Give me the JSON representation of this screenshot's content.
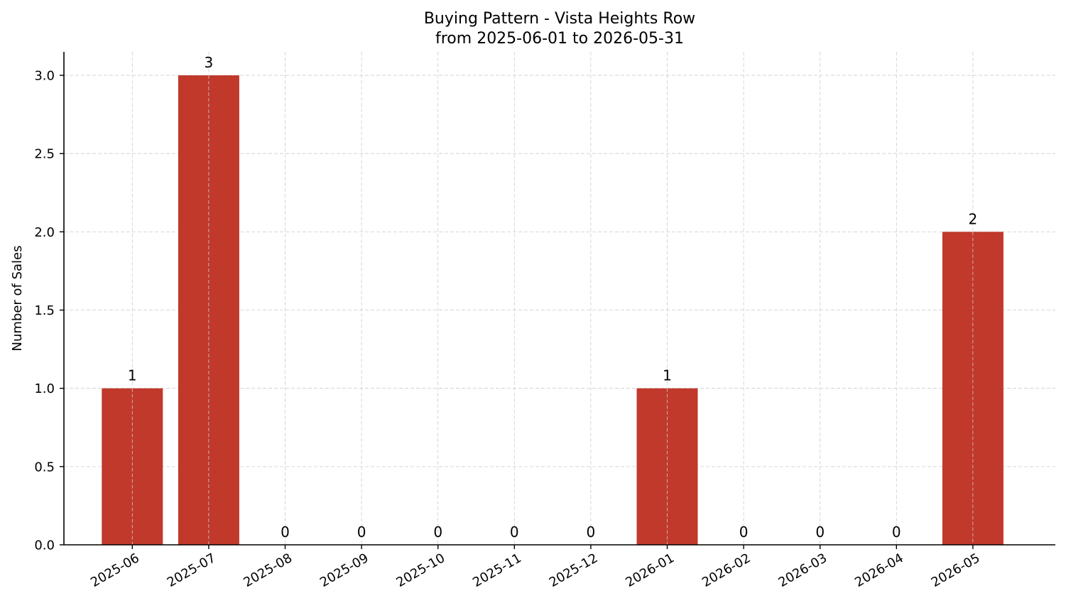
{
  "chart_data": {
    "type": "bar",
    "title_line1": "Buying Pattern - Vista Heights Row",
    "title_line2": "from 2025-06-01 to 2026-05-31",
    "xlabel": "",
    "ylabel": "Number of Sales",
    "categories": [
      "2025-06",
      "2025-07",
      "2025-08",
      "2025-09",
      "2025-10",
      "2025-11",
      "2025-12",
      "2026-01",
      "2026-02",
      "2026-03",
      "2026-04",
      "2026-05"
    ],
    "values": [
      1,
      3,
      0,
      0,
      0,
      0,
      0,
      1,
      0,
      0,
      0,
      2
    ],
    "value_labels": [
      "1",
      "3",
      "0",
      "0",
      "0",
      "0",
      "0",
      "1",
      "0",
      "0",
      "0",
      "2"
    ],
    "ylim": [
      0,
      3.15
    ],
    "yticks": [
      0.0,
      0.5,
      1.0,
      1.5,
      2.0,
      2.5,
      3.0
    ],
    "ytick_labels": [
      "0.0",
      "0.5",
      "1.0",
      "1.5",
      "2.0",
      "2.5",
      "3.0"
    ],
    "grid": true,
    "bar_color": "#c0392b"
  }
}
